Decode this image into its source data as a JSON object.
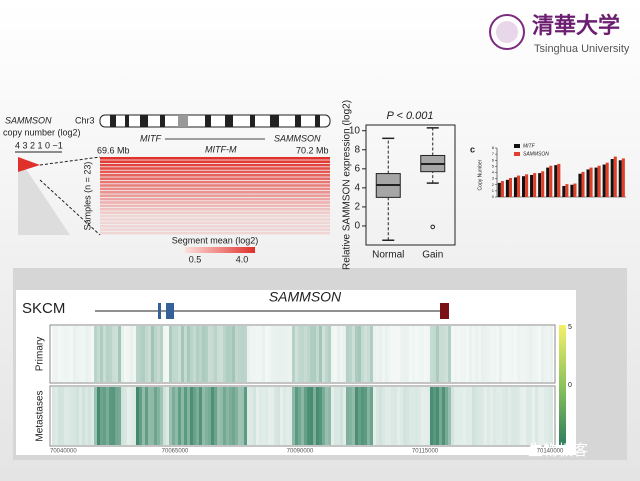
{
  "header": {
    "logo_text": "清華大学",
    "university": "Tsinghua University"
  },
  "panel_a": {
    "gene": "SAMMSON",
    "chromosome": "Chr3",
    "cn_label": "copy number (log2)",
    "cn_ticks": "4 3 2 1 0 −1",
    "start": "69.6 Mb",
    "end": "70.2 Mb",
    "genes": [
      "MITF",
      "MITF-M",
      "SAMMSON"
    ],
    "samples_label": "Samples (n = 23)",
    "legend_title": "Segment mean (log2)",
    "legend_min": "0.5",
    "legend_max": "4.0"
  },
  "chart_data": [
    {
      "type": "box",
      "title": "P < 0.001",
      "y_label": "Relative SAMMSON expression (log2)",
      "categories": [
        "Normal",
        "Gain"
      ],
      "color": "#a6a6a6",
      "ylim": [
        -2,
        10.6
      ],
      "yticks": [
        0,
        2,
        4,
        6,
        8,
        10
      ],
      "boxes": [
        {
          "min": -1.5,
          "q1": 3,
          "median": 4.3,
          "q3": 5.5,
          "max": 9.2
        },
        {
          "min": 4.5,
          "q1": 5.7,
          "median": 6.5,
          "q3": 7.4,
          "max": 10.3,
          "outliers": [
            -0.1
          ]
        }
      ]
    },
    {
      "type": "bar",
      "label": "c",
      "y_label": "Copy Number",
      "categories": [
        null,
        null,
        null,
        null,
        null,
        null,
        null,
        null,
        null,
        null,
        null,
        null,
        null,
        null,
        null,
        null
      ],
      "ylim": [
        0,
        8
      ],
      "yticks": [
        0,
        1,
        2,
        3,
        4,
        5,
        6,
        7,
        8
      ],
      "series": [
        {
          "name": "MITF",
          "color": "#111111",
          "values": [
            2.3,
            2.8,
            3.2,
            3.4,
            3.6,
            3.9,
            4.8,
            5.2,
            1.8,
            2.0,
            3.8,
            4.5,
            4.8,
            5.3,
            6.2,
            6.0
          ]
        },
        {
          "name": "SAMMSON",
          "color": "#e0402a",
          "values": [
            2.6,
            3.1,
            3.5,
            3.7,
            3.9,
            4.2,
            5.1,
            5.4,
            2.1,
            2.2,
            4.1,
            4.8,
            5.1,
            5.6,
            6.6,
            6.3
          ]
        }
      ]
    }
  ],
  "panel_d": {
    "cohort": "SKCM",
    "gene": "SAMMSON",
    "rows": [
      "Primary",
      "Metastases"
    ],
    "scale": [
      "5",
      "0"
    ],
    "xticks": [
      "70040000",
      "70065000",
      "70090000",
      "70115000",
      "70140000"
    ]
  },
  "watermark": "生物极客"
}
